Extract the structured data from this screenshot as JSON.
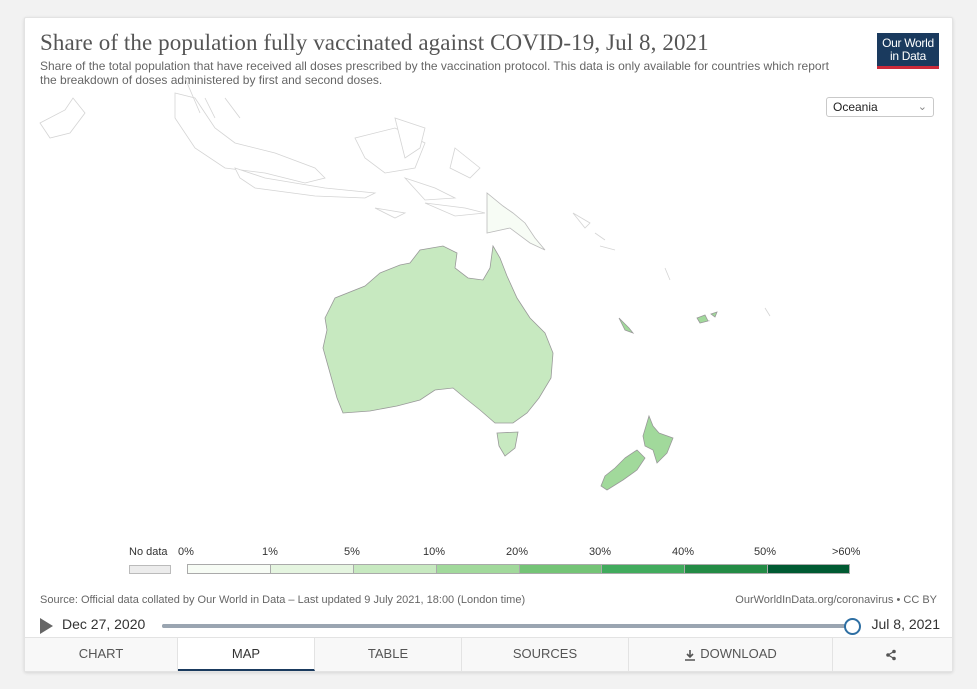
{
  "title": "Share of the population fully vaccinated against COVID-19, Jul 8, 2021",
  "subtitle": "Share of the total population that have received all doses prescribed by the vaccination protocol. This data is only available for countries which report the breakdown of doses administered by first and second doses.",
  "logo": {
    "line1": "Our World",
    "line2": "in Data"
  },
  "region_select": {
    "value": "Oceania"
  },
  "legend": {
    "no_data_label": "No data",
    "ticks": [
      "0%",
      "1%",
      "5%",
      "10%",
      "20%",
      "30%",
      "40%",
      "50%",
      ">60%"
    ],
    "colors": [
      "#f7fcf5",
      "#e5f5e0",
      "#c7e9c0",
      "#a1d99b",
      "#74c476",
      "#41ab5d",
      "#238b45",
      "#005a32"
    ],
    "no_data_color": "#ececec"
  },
  "map_regions": [
    {
      "name": "Australia",
      "bin_color": "#c7e9c0"
    },
    {
      "name": "New Zealand",
      "bin_color": "#a1d99b"
    },
    {
      "name": "Papua New Guinea",
      "bin_color": "#f7fcf5"
    },
    {
      "name": "Fiji",
      "bin_color": "#a1d99b"
    },
    {
      "name": "Indonesia",
      "bin_color": "#ffffff"
    }
  ],
  "source": "Source: Official data collated by Our World in Data – Last updated 9 July 2021, 18:00 (London time)",
  "credit": "OurWorldInData.org/coronavirus • CC BY",
  "timeline": {
    "start": "Dec 27, 2020",
    "end": "Jul 8, 2021",
    "position": 1.0
  },
  "tabs": [
    {
      "label": "Chart"
    },
    {
      "label": "Map"
    },
    {
      "label": "Table"
    },
    {
      "label": "Sources"
    },
    {
      "label": "Download"
    },
    {
      "label": ""
    }
  ],
  "active_tab": "Map"
}
